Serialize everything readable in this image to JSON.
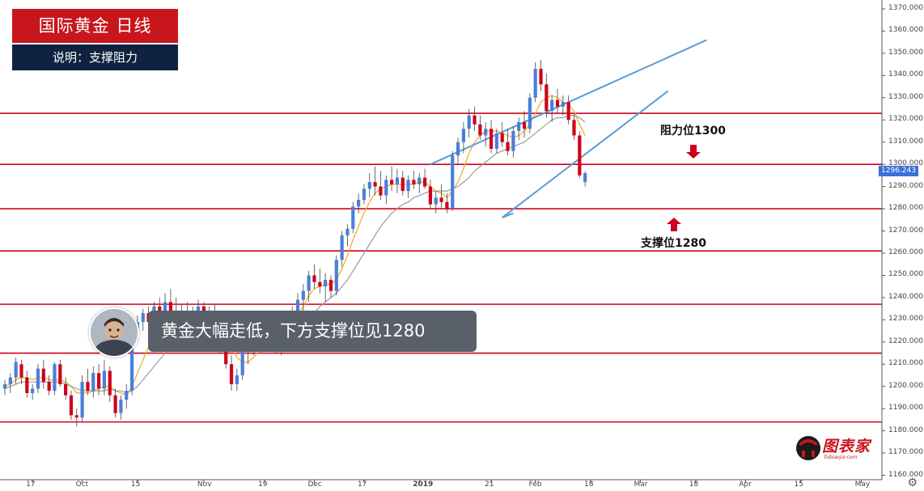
{
  "header": {
    "title": "国际黄金 日线",
    "subtitle": "说明：支撑阻力"
  },
  "callout": {
    "text": "黄金大幅走低，下方支撑位见1280"
  },
  "annotations": {
    "resistance_label": "阻力位1300",
    "support_label": "支撑位1280"
  },
  "price_badge": "1296.243",
  "logo": {
    "text": "图表家",
    "sub": "Tubiaojia·com"
  },
  "colors": {
    "up": "#4a7fd9",
    "down": "#d0021b",
    "level_line": "#d0021b",
    "channel": "#5b9bd5",
    "ma_fast": "#f5a623",
    "ma_slow": "#9b9b9b",
    "arrow": "#d0021b"
  },
  "icons": {
    "settings": "gear-icon"
  },
  "chart_data": {
    "type": "candlestick",
    "ylim": [
      1158,
      1374
    ],
    "yticks": [
      1160,
      1170,
      1180,
      1190,
      1200,
      1210,
      1220,
      1230,
      1240,
      1250,
      1260,
      1270,
      1280,
      1290,
      1300,
      1310,
      1320,
      1330,
      1340,
      1350,
      1360,
      1370
    ],
    "ytick_labels": [
      "1160.000",
      "1170.000",
      "1180.000",
      "1190.000",
      "1200.000",
      "1210.000",
      "1220.000",
      "1230.000",
      "1240.000",
      "1250.000",
      "1260.000",
      "1270.000",
      "1280.000",
      "1290.000",
      "1300.000",
      "1310.000",
      "1320.000",
      "1330.000",
      "1340.000",
      "1350.000",
      "1360.000",
      "1370.000"
    ],
    "xticks": [
      {
        "i": 5,
        "label": "17"
      },
      {
        "i": 14,
        "label": "Oct"
      },
      {
        "i": 24,
        "label": "15"
      },
      {
        "i": 36,
        "label": "Nov"
      },
      {
        "i": 47,
        "label": "19"
      },
      {
        "i": 56,
        "label": "Dec"
      },
      {
        "i": 65,
        "label": "17"
      },
      {
        "i": 75,
        "label": "2019"
      },
      {
        "i": 88,
        "label": "21"
      },
      {
        "i": 96,
        "label": "Feb"
      },
      {
        "i": 106,
        "label": "18"
      },
      {
        "i": 115,
        "label": "Mar"
      },
      {
        "i": 125,
        "label": "18"
      },
      {
        "i": 134,
        "label": "Apr"
      },
      {
        "i": 144,
        "label": "15"
      },
      {
        "i": 155,
        "label": "May"
      }
    ],
    "n_slots": 162,
    "horizontal_levels": [
      1323,
      1300,
      1280,
      1261,
      1237,
      1215,
      1184
    ],
    "channel_lines": [
      {
        "from": [
          77,
          1300
        ],
        "to": [
          127,
          1356
        ]
      },
      {
        "from": [
          90,
          1276
        ],
        "to": [
          120,
          1333
        ]
      },
      {
        "from": [
          90,
          1276
        ],
        "to": [
          92,
          1278
        ]
      }
    ],
    "ohlc": [
      [
        1199,
        1203,
        1196,
        1201
      ],
      [
        1201,
        1206,
        1197,
        1204
      ],
      [
        1204,
        1213,
        1201,
        1211
      ],
      [
        1210,
        1212,
        1201,
        1204
      ],
      [
        1204,
        1207,
        1195,
        1197
      ],
      [
        1197,
        1201,
        1194,
        1199
      ],
      [
        1199,
        1210,
        1197,
        1208
      ],
      [
        1208,
        1212,
        1199,
        1202
      ],
      [
        1202,
        1205,
        1196,
        1198
      ],
      [
        1198,
        1211,
        1196,
        1210
      ],
      [
        1210,
        1212,
        1200,
        1201
      ],
      [
        1201,
        1204,
        1194,
        1196
      ],
      [
        1196,
        1198,
        1185,
        1187
      ],
      [
        1187,
        1190,
        1182,
        1186
      ],
      [
        1186,
        1205,
        1184,
        1202
      ],
      [
        1202,
        1208,
        1196,
        1198
      ],
      [
        1198,
        1209,
        1195,
        1206
      ],
      [
        1206,
        1210,
        1196,
        1199
      ],
      [
        1199,
        1212,
        1196,
        1207
      ],
      [
        1207,
        1209,
        1193,
        1196
      ],
      [
        1196,
        1199,
        1186,
        1188
      ],
      [
        1188,
        1196,
        1185,
        1194
      ],
      [
        1194,
        1201,
        1190,
        1198
      ],
      [
        1198,
        1226,
        1196,
        1224
      ],
      [
        1224,
        1232,
        1220,
        1229
      ],
      [
        1229,
        1235,
        1225,
        1233
      ],
      [
        1233,
        1236,
        1227,
        1229
      ],
      [
        1229,
        1238,
        1226,
        1236
      ],
      [
        1236,
        1240,
        1230,
        1232
      ],
      [
        1232,
        1242,
        1229,
        1238
      ],
      [
        1238,
        1244,
        1232,
        1234
      ],
      [
        1234,
        1240,
        1226,
        1230
      ],
      [
        1230,
        1237,
        1226,
        1234
      ],
      [
        1234,
        1238,
        1228,
        1231
      ],
      [
        1231,
        1236,
        1225,
        1227
      ],
      [
        1227,
        1239,
        1225,
        1236
      ],
      [
        1236,
        1238,
        1228,
        1230
      ],
      [
        1230,
        1236,
        1226,
        1233
      ],
      [
        1233,
        1237,
        1227,
        1229
      ],
      [
        1229,
        1234,
        1215,
        1218
      ],
      [
        1218,
        1221,
        1208,
        1210
      ],
      [
        1210,
        1214,
        1198,
        1201
      ],
      [
        1201,
        1208,
        1198,
        1205
      ],
      [
        1205,
        1219,
        1203,
        1216
      ],
      [
        1216,
        1221,
        1210,
        1218
      ],
      [
        1218,
        1226,
        1214,
        1223
      ],
      [
        1223,
        1227,
        1217,
        1221
      ],
      [
        1221,
        1229,
        1219,
        1227
      ],
      [
        1227,
        1231,
        1222,
        1225
      ],
      [
        1225,
        1230,
        1215,
        1218
      ],
      [
        1218,
        1226,
        1214,
        1222
      ],
      [
        1222,
        1230,
        1219,
        1228
      ],
      [
        1228,
        1236,
        1225,
        1234
      ],
      [
        1234,
        1242,
        1231,
        1239
      ],
      [
        1239,
        1246,
        1234,
        1243
      ],
      [
        1243,
        1252,
        1238,
        1250
      ],
      [
        1250,
        1255,
        1244,
        1247
      ],
      [
        1247,
        1253,
        1242,
        1245
      ],
      [
        1245,
        1251,
        1238,
        1248
      ],
      [
        1248,
        1250,
        1240,
        1243
      ],
      [
        1243,
        1259,
        1241,
        1257
      ],
      [
        1257,
        1270,
        1254,
        1268
      ],
      [
        1268,
        1273,
        1263,
        1271
      ],
      [
        1271,
        1283,
        1269,
        1281
      ],
      [
        1281,
        1287,
        1278,
        1284
      ],
      [
        1284,
        1291,
        1282,
        1289
      ],
      [
        1289,
        1296,
        1285,
        1292
      ],
      [
        1292,
        1299,
        1286,
        1290
      ],
      [
        1290,
        1297,
        1284,
        1286
      ],
      [
        1286,
        1295,
        1282,
        1293
      ],
      [
        1293,
        1299,
        1288,
        1291
      ],
      [
        1291,
        1298,
        1287,
        1294
      ],
      [
        1294,
        1297,
        1286,
        1288
      ],
      [
        1288,
        1295,
        1285,
        1293
      ],
      [
        1293,
        1297,
        1289,
        1291
      ],
      [
        1291,
        1296,
        1287,
        1294
      ],
      [
        1294,
        1298,
        1289,
        1290
      ],
      [
        1290,
        1293,
        1280,
        1282
      ],
      [
        1282,
        1288,
        1278,
        1285
      ],
      [
        1285,
        1291,
        1280,
        1283
      ],
      [
        1283,
        1287,
        1278,
        1280
      ],
      [
        1280,
        1306,
        1279,
        1304
      ],
      [
        1304,
        1312,
        1300,
        1310
      ],
      [
        1310,
        1319,
        1305,
        1316
      ],
      [
        1316,
        1325,
        1312,
        1322
      ],
      [
        1322,
        1326,
        1315,
        1318
      ],
      [
        1318,
        1322,
        1311,
        1313
      ],
      [
        1313,
        1319,
        1308,
        1316
      ],
      [
        1316,
        1320,
        1305,
        1307
      ],
      [
        1307,
        1316,
        1305,
        1314
      ],
      [
        1314,
        1319,
        1308,
        1310
      ],
      [
        1310,
        1316,
        1304,
        1306
      ],
      [
        1306,
        1317,
        1303,
        1315
      ],
      [
        1315,
        1321,
        1311,
        1319
      ],
      [
        1319,
        1324,
        1312,
        1316
      ],
      [
        1316,
        1332,
        1314,
        1330
      ],
      [
        1330,
        1346,
        1328,
        1343
      ],
      [
        1343,
        1347,
        1333,
        1336
      ],
      [
        1336,
        1341,
        1321,
        1324
      ],
      [
        1324,
        1331,
        1319,
        1329
      ],
      [
        1329,
        1334,
        1323,
        1326
      ],
      [
        1326,
        1331,
        1322,
        1328
      ],
      [
        1328,
        1331,
        1318,
        1320
      ],
      [
        1320,
        1323,
        1311,
        1313
      ],
      [
        1313,
        1315,
        1294,
        1295
      ],
      [
        1292,
        1297,
        1290,
        1296
      ]
    ],
    "ohlc_start_index": 0,
    "moving_averages": [
      {
        "name": "MA fast",
        "color": "#f5a623",
        "values": [
          1200,
          1201,
          1203,
          1204,
          1204,
          1203,
          1204,
          1204,
          1203,
          1203,
          1203,
          1202,
          1200,
          1197,
          1197,
          1197,
          1198,
          1199,
          1200,
          1200,
          1198,
          1197,
          1196,
          1200,
          1206,
          1212,
          1218,
          1224,
          1229,
          1232,
          1234,
          1234,
          1233,
          1233,
          1232,
          1232,
          1232,
          1232,
          1231,
          1228,
          1224,
          1218,
          1213,
          1211,
          1211,
          1213,
          1216,
          1219,
          1221,
          1222,
          1223,
          1225,
          1228,
          1232,
          1236,
          1241,
          1244,
          1245,
          1246,
          1246,
          1248,
          1253,
          1259,
          1266,
          1272,
          1278,
          1283,
          1287,
          1289,
          1290,
          1291,
          1291,
          1291,
          1291,
          1291,
          1292,
          1292,
          1290,
          1288,
          1287,
          1285,
          1288,
          1292,
          1298,
          1305,
          1310,
          1313,
          1315,
          1315,
          1315,
          1314,
          1313,
          1312,
          1313,
          1315,
          1318,
          1323,
          1328,
          1330,
          1331,
          1330,
          1328,
          1327,
          1324,
          1318,
          1313
        ]
      },
      {
        "name": "MA slow",
        "color": "#9b9b9b",
        "values": [
          1199,
          1200,
          1201,
          1202,
          1202,
          1202,
          1202,
          1202,
          1202,
          1202,
          1202,
          1201,
          1200,
          1199,
          1198,
          1198,
          1198,
          1198,
          1198,
          1199,
          1198,
          1198,
          1197,
          1198,
          1200,
          1203,
          1206,
          1209,
          1212,
          1215,
          1218,
          1220,
          1222,
          1224,
          1225,
          1226,
          1227,
          1227,
          1227,
          1227,
          1226,
          1224,
          1222,
          1220,
          1219,
          1218,
          1218,
          1218,
          1218,
          1219,
          1220,
          1221,
          1223,
          1225,
          1227,
          1230,
          1233,
          1236,
          1238,
          1240,
          1242,
          1245,
          1248,
          1252,
          1256,
          1260,
          1264,
          1268,
          1272,
          1275,
          1278,
          1280,
          1282,
          1283,
          1285,
          1286,
          1287,
          1288,
          1288,
          1288,
          1288,
          1289,
          1290,
          1292,
          1294,
          1297,
          1299,
          1301,
          1303,
          1305,
          1306,
          1307,
          1308,
          1309,
          1310,
          1312,
          1314,
          1316,
          1318,
          1320,
          1321,
          1321,
          1322,
          1322,
          1321,
          1319
        ]
      }
    ]
  }
}
